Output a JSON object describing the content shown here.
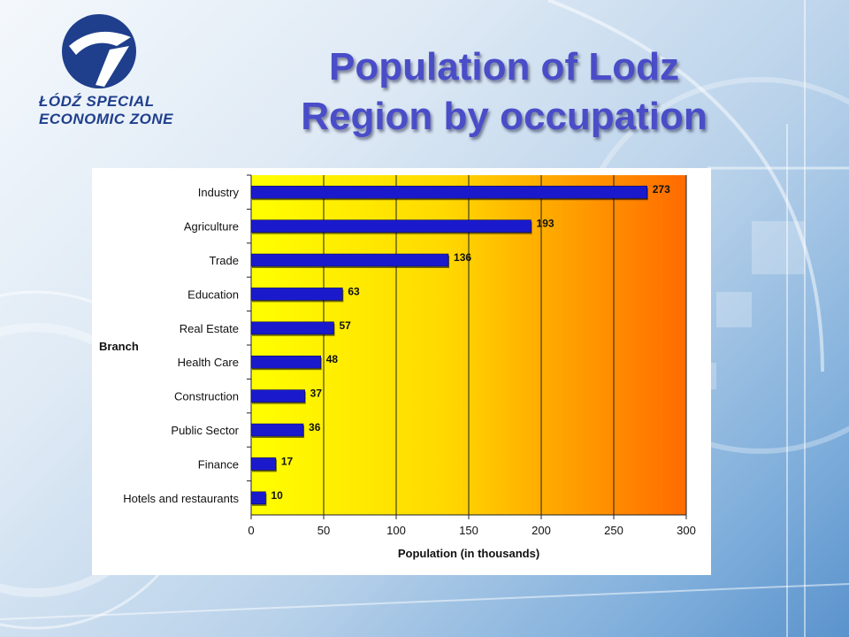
{
  "logo": {
    "line1": "ŁÓDŹ SPECIAL",
    "line2": "ECONOMIC ZONE"
  },
  "title": {
    "line1": "Population of Lodz",
    "line2": "Region by occupation"
  },
  "colors": {
    "bar": "#1a1acc",
    "title": "#4a4dc8",
    "plot_gradient_start": "#ffff00",
    "plot_gradient_end": "#ff6a00"
  },
  "chart_data": {
    "type": "bar",
    "orientation": "horizontal",
    "categories": [
      "Industry",
      "Agriculture",
      "Trade",
      "Education",
      "Real Estate",
      "Health Care",
      "Construction",
      "Public Sector",
      "Finance",
      "Hotels and restaurants"
    ],
    "values": [
      273,
      193,
      136,
      63,
      57,
      48,
      37,
      36,
      17,
      10
    ],
    "data_labels": [
      "273",
      "193",
      "136",
      "63",
      "57",
      "48",
      "37",
      "36",
      "17",
      "10"
    ],
    "xlabel": "Population (in thousands)",
    "ylabel": "Branch",
    "xlim": [
      0,
      300
    ],
    "xticks": [
      "0",
      "50",
      "100",
      "150",
      "200",
      "250",
      "300"
    ],
    "grid": "vertical"
  }
}
